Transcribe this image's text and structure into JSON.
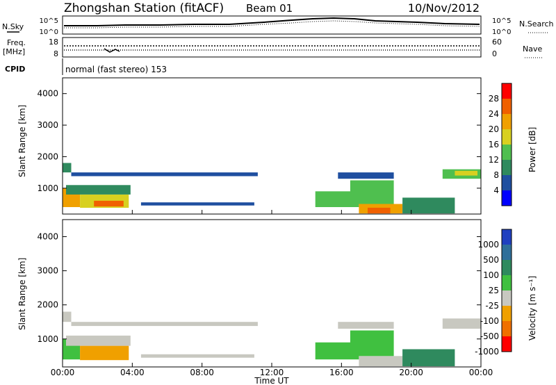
{
  "header": {
    "title": "Zhongshan Station (fitACF)",
    "beam": "Beam 01",
    "date": "10/Nov/2012"
  },
  "top_panels": {
    "nsky_label": "N.Sky",
    "nsearch_label": "N.Search",
    "noise_ticks_left": [
      "10^5",
      "10^0"
    ],
    "noise_ticks_right": [
      "10^5",
      "10^0"
    ],
    "freq_label": "Freq.",
    "freq_unit": "[MHz]",
    "freq_ticks": [
      "18",
      "8"
    ],
    "nave_label": "Nave",
    "nave_ticks": [
      "60",
      "0"
    ],
    "cpid_label": "CPID",
    "cpid_text": "normal (fast stereo) 153"
  },
  "colors": {
    "power": [
      "#0000ff",
      "#1f4fa0",
      "#2f8a5e",
      "#4fbf4f",
      "#d8d020",
      "#f0a000",
      "#f06000",
      "#ff0000"
    ],
    "velocity": [
      "#2040c0",
      "#2f6f9a",
      "#2f8a5e",
      "#40c040",
      "#c8c8c0",
      "#f0a000",
      "#f07000",
      "#ff0000"
    ]
  },
  "chart_data": [
    {
      "type": "heatmap",
      "title": "",
      "xlabel": "Time UT",
      "ylabel": "Slant Range [km]",
      "x_ticks": [
        "00:00",
        "04:00",
        "08:00",
        "12:00",
        "16:00",
        "20:00",
        "00:00"
      ],
      "y_ticks": [
        "1000",
        "2000",
        "3000",
        "4000"
      ],
      "ylim": [
        180,
        4500
      ],
      "colorbar_label": "Power [dB]",
      "colorbar_ticks": [
        "4",
        "8",
        "12",
        "16",
        "20",
        "24",
        "28"
      ],
      "colorbar_range": [
        0,
        32
      ],
      "blocks": [
        {
          "t0": 0.0,
          "t1": 0.5,
          "r0": 1500,
          "r1": 1800,
          "v": 10
        },
        {
          "t0": 0.5,
          "t1": 11.2,
          "r0": 1380,
          "r1": 1500,
          "v": 6
        },
        {
          "t0": 0.0,
          "t1": 1.0,
          "r0": 400,
          "r1": 1000,
          "v": 22
        },
        {
          "t0": 1.0,
          "t1": 3.8,
          "r0": 380,
          "r1": 800,
          "v": 18
        },
        {
          "t0": 1.8,
          "t1": 3.5,
          "r0": 420,
          "r1": 600,
          "v": 26
        },
        {
          "t0": 0.2,
          "t1": 3.9,
          "r0": 800,
          "r1": 1100,
          "v": 10
        },
        {
          "t0": 4.5,
          "t1": 11.0,
          "r0": 450,
          "r1": 550,
          "v": 5
        },
        {
          "t0": 14.5,
          "t1": 17.0,
          "r0": 400,
          "r1": 900,
          "v": 12
        },
        {
          "t0": 17.0,
          "t1": 19.5,
          "r0": 200,
          "r1": 500,
          "v": 20
        },
        {
          "t0": 17.5,
          "t1": 18.8,
          "r0": 200,
          "r1": 380,
          "v": 27
        },
        {
          "t0": 16.5,
          "t1": 19.0,
          "r0": 500,
          "r1": 1250,
          "v": 15
        },
        {
          "t0": 19.5,
          "t1": 22.5,
          "r0": 200,
          "r1": 700,
          "v": 9
        },
        {
          "t0": 21.8,
          "t1": 24.0,
          "r0": 1300,
          "r1": 1600,
          "v": 12
        },
        {
          "t0": 15.8,
          "t1": 19.0,
          "r0": 1300,
          "r1": 1500,
          "v": 6
        },
        {
          "t0": 22.5,
          "t1": 23.8,
          "r0": 1400,
          "r1": 1550,
          "v": 17
        }
      ]
    },
    {
      "type": "heatmap",
      "title": "",
      "xlabel": "Time UT",
      "ylabel": "Slant Range [km]",
      "x_ticks": [
        "00:00",
        "04:00",
        "08:00",
        "12:00",
        "16:00",
        "20:00",
        "00:00"
      ],
      "y_ticks": [
        "1000",
        "2000",
        "3000",
        "4000"
      ],
      "ylim": [
        180,
        4500
      ],
      "colorbar_label": "Velocity [m s⁻¹]",
      "colorbar_ticks": [
        "1000",
        "500",
        "100",
        "25",
        "-25",
        "-100",
        "-500",
        "-1000"
      ],
      "colorbar_range": [
        -1200,
        1200
      ],
      "blocks": [
        {
          "t0": 0.0,
          "t1": 0.5,
          "r0": 1500,
          "r1": 1800,
          "v": 0
        },
        {
          "t0": 0.5,
          "t1": 11.2,
          "r0": 1380,
          "r1": 1500,
          "v": 0
        },
        {
          "t0": 0.0,
          "t1": 1.0,
          "r0": 400,
          "r1": 1000,
          "v": 50
        },
        {
          "t0": 1.0,
          "t1": 3.8,
          "r0": 380,
          "r1": 800,
          "v": -300
        },
        {
          "t0": 1.8,
          "t1": 3.5,
          "r0": 420,
          "r1": 600,
          "v": -450
        },
        {
          "t0": 0.2,
          "t1": 3.9,
          "r0": 800,
          "r1": 1100,
          "v": 0
        },
        {
          "t0": 4.5,
          "t1": 11.0,
          "r0": 450,
          "r1": 550,
          "v": 0
        },
        {
          "t0": 14.5,
          "t1": 17.0,
          "r0": 400,
          "r1": 900,
          "v": 120
        },
        {
          "t0": 17.0,
          "t1": 19.5,
          "r0": 200,
          "r1": 500,
          "v": 0
        },
        {
          "t0": 17.5,
          "t1": 18.8,
          "r0": 200,
          "r1": 380,
          "v": -200
        },
        {
          "t0": 16.5,
          "t1": 19.0,
          "r0": 500,
          "r1": 1250,
          "v": 200
        },
        {
          "t0": 19.5,
          "t1": 22.5,
          "r0": 200,
          "r1": 700,
          "v": 600
        },
        {
          "t0": 21.8,
          "t1": 24.0,
          "r0": 1300,
          "r1": 1600,
          "v": 0
        },
        {
          "t0": 15.8,
          "t1": 19.0,
          "r0": 1300,
          "r1": 1500,
          "v": 0
        },
        {
          "t0": 22.5,
          "t1": 23.8,
          "r0": 1400,
          "r1": 1550,
          "v": 0
        }
      ]
    }
  ]
}
